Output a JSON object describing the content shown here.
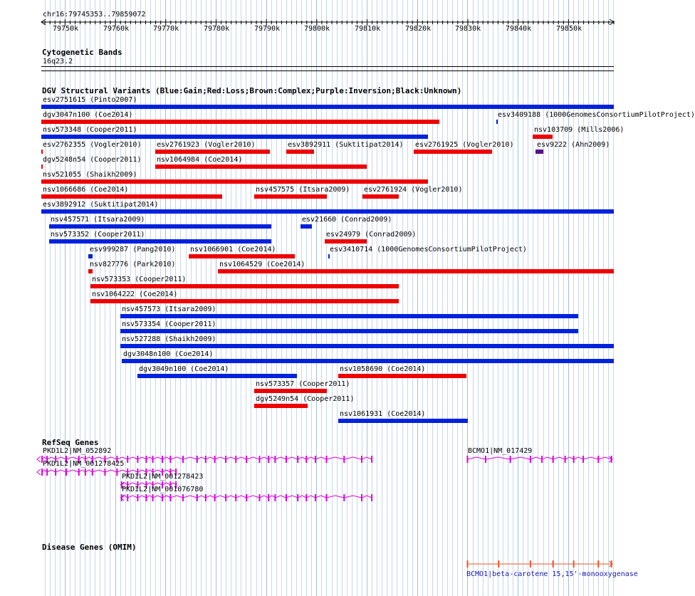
{
  "locus": "chr16:79745353..79859072",
  "scale_ticks": [
    "79750k",
    "79760k",
    "79770k",
    "79780k",
    "79790k",
    "79800k",
    "79810k",
    "79820k",
    "79830k",
    "79840k",
    "79850k"
  ],
  "tracks": {
    "cyto_title": "Cytogenetic Bands",
    "cyto_band": "16q23.2",
    "dgv_title": "DGV Structural Variants (Blue:Gain;Red:Loss;Brown:Complex;Purple:Inversion;Black:Unknown)",
    "refseq_title": "RefSeq Genes",
    "omim_title": "Disease Genes (OMIM)"
  },
  "colors": {
    "gain": "#0022dd",
    "loss": "#ee0000",
    "inversion": "#551188",
    "gene": "#dd00dd",
    "omim": "#ee5522",
    "omim_label": "#1a1ab0"
  },
  "variants": [
    {
      "label": "esv2751615 (Pinto2007)",
      "color": "gain",
      "row": 0,
      "start": 79745353,
      "end": 79859072
    },
    {
      "label": "dgv3047n100 (Coe2014)",
      "color": "loss",
      "row": 1,
      "start": 79745353,
      "end": 79824400
    },
    {
      "label": "esv3409188 (1000GenomesConsortiumPilotProject)",
      "color": "gain",
      "row": 1,
      "start": 79835800,
      "end": 79836100
    },
    {
      "label": "nsv573348 (Cooper2011)",
      "color": "gain",
      "row": 2,
      "start": 79745353,
      "end": 79822100
    },
    {
      "label": "nsv103709 (Mills2006)",
      "color": "loss",
      "row": 2,
      "start": 79842900,
      "end": 79846800
    },
    {
      "label": "esv2762355 (Vogler2010)",
      "color": "loss",
      "row": 3,
      "start": 79745353,
      "end": 79745700
    },
    {
      "label": "esv2761923 (Vogler2010)",
      "color": "loss",
      "row": 3,
      "start": 79768000,
      "end": 79790800
    },
    {
      "label": "esv3892911 (Suktitipat2014)",
      "color": "loss",
      "row": 3,
      "start": 79794000,
      "end": 79799500
    },
    {
      "label": "esv2761925 (Vogler2010)",
      "color": "loss",
      "row": 3,
      "start": 79819300,
      "end": 79834900
    },
    {
      "label": "esv9222 (Ahn2009)",
      "color": "inversion",
      "row": 3,
      "start": 79843500,
      "end": 79845000
    },
    {
      "label": "dgv5248n54 (Cooper2011)",
      "color": "loss",
      "row": 4,
      "start": 79745353,
      "end": 79745700
    },
    {
      "label": "nsv1064984 (Coe2014)",
      "color": "loss",
      "row": 4,
      "start": 79768000,
      "end": 79810000
    },
    {
      "label": "nsv521055 (Shaikh2009)",
      "color": "loss",
      "row": 5,
      "start": 79745353,
      "end": 79822100
    },
    {
      "label": "nsv1066686 (Coe2014)",
      "color": "loss",
      "row": 6,
      "start": 79745353,
      "end": 79781300
    },
    {
      "label": "nsv457575 (Itsara2009)",
      "color": "loss",
      "row": 6,
      "start": 79787700,
      "end": 79802100
    },
    {
      "label": "esv2761924 (Vogler2010)",
      "color": "loss",
      "row": 6,
      "start": 79809200,
      "end": 79816400
    },
    {
      "label": "esv3892912 (Suktitipat2014)",
      "color": "gain",
      "row": 7,
      "start": 79745353,
      "end": 79859072
    },
    {
      "label": "nsv457571 (Itsara2009)",
      "color": "gain",
      "row": 8,
      "start": 79746900,
      "end": 79791000
    },
    {
      "label": "esv21660 (Conrad2009)",
      "color": "gain",
      "row": 8,
      "start": 79796900,
      "end": 79799200
    },
    {
      "label": "nsv573352 (Cooper2011)",
      "color": "gain",
      "row": 9,
      "start": 79746900,
      "end": 79791000
    },
    {
      "label": "esv24979 (Conrad2009)",
      "color": "loss",
      "row": 9,
      "start": 79801700,
      "end": 79810100
    },
    {
      "label": "esv999287 (Pang2010)",
      "color": "gain",
      "row": 10,
      "start": 79754700,
      "end": 79755500
    },
    {
      "label": "nsv1066901 (Coe2014)",
      "color": "loss",
      "row": 10,
      "start": 79774600,
      "end": 79795700
    },
    {
      "label": "esv3410714 (1000GenomesConsortiumPilotProject)",
      "color": "gain",
      "row": 10,
      "start": 79802400,
      "end": 79802600
    },
    {
      "label": "nsv827776 (Park2010)",
      "color": "loss",
      "row": 11,
      "start": 79754700,
      "end": 79755500
    },
    {
      "label": "nsv1064529 (Coe2014)",
      "color": "loss",
      "row": 11,
      "start": 79780500,
      "end": 79859072
    },
    {
      "label": "nsv573353 (Cooper2011)",
      "color": "loss",
      "row": 12,
      "start": 79755100,
      "end": 79816300
    },
    {
      "label": "nsv1064222 (Coe2014)",
      "color": "loss",
      "row": 13,
      "start": 79755100,
      "end": 79816300
    },
    {
      "label": "nsv457573 (Itsara2009)",
      "color": "gain",
      "row": 14,
      "start": 79761100,
      "end": 79852100
    },
    {
      "label": "nsv573354 (Cooper2011)",
      "color": "gain",
      "row": 15,
      "start": 79761100,
      "end": 79852100
    },
    {
      "label": "nsv527288 (Shaikh2009)",
      "color": "gain",
      "row": 16,
      "start": 79761100,
      "end": 79859072
    },
    {
      "label": "dgv3048n100 (Coe2014)",
      "color": "gain",
      "row": 17,
      "start": 79761400,
      "end": 79859072
    },
    {
      "label": "dgv3049n100 (Coe2014)",
      "color": "gain",
      "row": 18,
      "start": 79764400,
      "end": 79796100
    },
    {
      "label": "nsv1058690 (Coe2014)",
      "color": "loss",
      "row": 18,
      "start": 79804400,
      "end": 79829800
    },
    {
      "label": "nsv573357 (Cooper2011)",
      "color": "loss",
      "row": 19,
      "start": 79787700,
      "end": 79802100
    },
    {
      "label": "dgv5249n54 (Cooper2011)",
      "color": "loss",
      "row": 20,
      "start": 79787700,
      "end": 79798300
    },
    {
      "label": "nsv1061931 (Coe2014)",
      "color": "gain",
      "row": 21,
      "start": 79804400,
      "end": 79830200
    }
  ],
  "genes": [
    {
      "label": "PKD1L2|NM_052892",
      "row": 0,
      "start": 79744500,
      "end": 79811600,
      "exons": [
        79745500,
        79746500,
        79748200,
        79750300,
        79752800,
        79754100,
        79755500,
        79758000,
        79760400,
        79762500,
        79764500,
        79766200,
        79767500,
        79769400,
        79771000,
        79773500,
        79776300,
        79778000,
        79779800,
        79782000,
        79784000,
        79786100,
        79788700,
        79790500,
        79791800,
        79794000,
        79796300,
        79798000,
        79799800,
        79802000,
        79805500,
        79809000,
        79811000
      ],
      "strand": "-"
    },
    {
      "label": "BCMO1|NM_017429",
      "row": 0,
      "start": 79829800,
      "end": 79858800,
      "exons": [
        79830000,
        79833600,
        79838500,
        79842500,
        79844800,
        79847000,
        79849400,
        79851100,
        79853000,
        79856000,
        79858600
      ],
      "strand": "+"
    },
    {
      "label": "PKD1L2|NM_001278425",
      "row": 1,
      "start": 79744500,
      "end": 79772300,
      "exons": [
        79745500,
        79746500,
        79748200,
        79750300,
        79752800,
        79754100,
        79755500,
        79758000,
        79760400,
        79762500,
        79764500,
        79766200,
        79767500,
        79769400,
        79771000,
        79772100
      ],
      "strand": "-"
    },
    {
      "label": "PKD1L2|NM_001278423",
      "row": 2,
      "start": 79761100,
      "end": 79772300,
      "exons": [
        79761300,
        79762500,
        79764500,
        79766200,
        79767500,
        79769400,
        79771000,
        79772100
      ],
      "strand": "-"
    },
    {
      "label": "PKD1L2|NM_001076780",
      "row": 3,
      "start": 79761100,
      "end": 79811600,
      "exons": [
        79761300,
        79762500,
        79764500,
        79766200,
        79767500,
        79769400,
        79771000,
        79773500,
        79776300,
        79778000,
        79779800,
        79782000,
        79784000,
        79786100,
        79788700,
        79790500,
        79791800,
        79794000,
        79796300,
        79798000,
        79799800,
        79802000,
        79805500,
        79809000,
        79811000
      ],
      "strand": "-"
    }
  ],
  "omim": [
    {
      "label": "BCMO1|beta-carotene 15,15'-monooxygenase",
      "start": 79829800,
      "end": 79858800,
      "exons": [
        79830000,
        79836200,
        79842500,
        79847000,
        79851100,
        79856000,
        79858600
      ]
    }
  ]
}
